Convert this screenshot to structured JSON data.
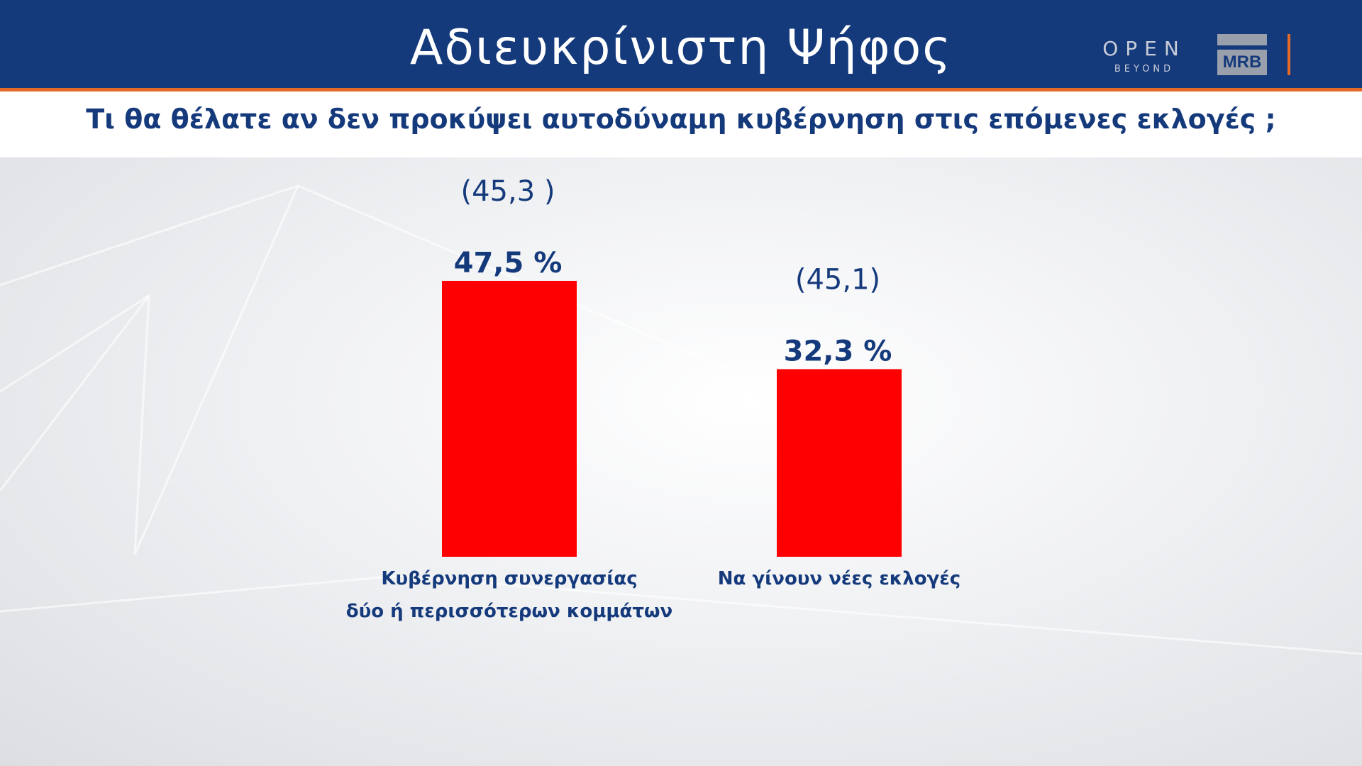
{
  "header": {
    "title": "Αδιευκρίνιστη  Ψήφος",
    "logo_open": "OPEN",
    "logo_open_sub": "BEYOND",
    "logo_mrb": "MRB"
  },
  "question": "Τι θα θέλατε αν δεν προκύψει αυτοδύναμη κυβέρνηση στις επόμενες εκλογές ;",
  "colors": {
    "header": "#153a7c",
    "accent": "#e46a2a",
    "bar": "#ff0000",
    "text": "#153a7c"
  },
  "chart_data": {
    "type": "bar",
    "categories": [
      [
        "Κυβέρνηση συνεργασίας",
        "δύο ή περισσότερων κομμάτων"
      ],
      [
        "Να γίνουν νέες εκλογές"
      ]
    ],
    "values": [
      47.5,
      32.3
    ],
    "value_labels": [
      "47,5 %",
      "32,3 %"
    ],
    "previous": [
      45.3,
      45.1
    ],
    "previous_labels": [
      "(45,3 )",
      "(45,1)"
    ],
    "ylim": [
      0,
      100
    ],
    "legend": false,
    "grid": false
  }
}
